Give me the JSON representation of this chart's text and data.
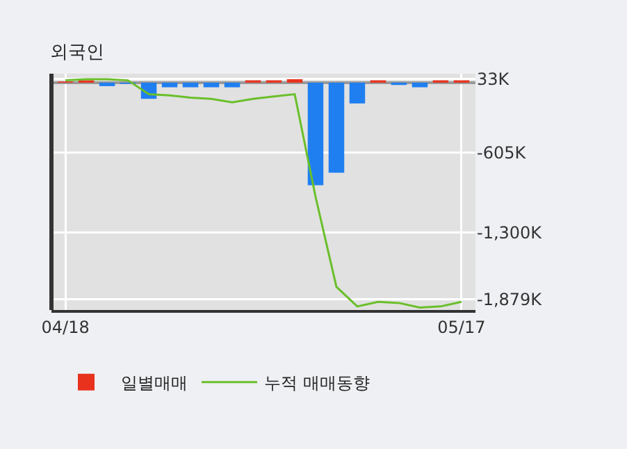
{
  "chart_data": {
    "type": "bar",
    "title": "외국인",
    "categories": [
      "04/18",
      null,
      null,
      null,
      null,
      null,
      null,
      null,
      null,
      null,
      null,
      null,
      null,
      null,
      null,
      null,
      null,
      null,
      null,
      "05/17"
    ],
    "series": [
      {
        "name": "일별매매",
        "colors": [
          "#e8321e",
          "#e8321e",
          "#1f7ff0",
          "#1f7ff0",
          "#1f7ff0",
          "#1f7ff0",
          "#1f7ff0",
          "#1f7ff0",
          "#1f7ff0",
          "#e8321e",
          "#e8321e",
          "#e8321e",
          "#1f7ff0",
          "#1f7ff0",
          "#1f7ff0",
          "#e8321e",
          "#1f7ff0",
          "#1f7ff0",
          "#e8321e",
          "#e8321e"
        ],
        "values": [
          10,
          20,
          -30,
          -10,
          -140,
          -40,
          -40,
          -40,
          -40,
          20,
          20,
          30,
          -890,
          -780,
          -180,
          20,
          -20,
          -40,
          20,
          20
        ]
      },
      {
        "name": "누적 매매동향",
        "type": "line",
        "color": "#6abf2a",
        "values": [
          20,
          30,
          30,
          20,
          -100,
          -110,
          -130,
          -140,
          -170,
          -140,
          -120,
          -100,
          -990,
          -1770,
          -1940,
          -1900,
          -1910,
          -1950,
          -1940,
          -1900
        ]
      }
    ],
    "ylim": [
      -1971,
      78
    ],
    "yticks": [
      {
        "value": 33,
        "label": "33K"
      },
      {
        "value": -605,
        "label": "-605K"
      },
      {
        "value": -1300,
        "label": "-1,300K"
      },
      {
        "value": -1879,
        "label": "-1,879K"
      }
    ],
    "grid": true,
    "legend": "bottom"
  }
}
